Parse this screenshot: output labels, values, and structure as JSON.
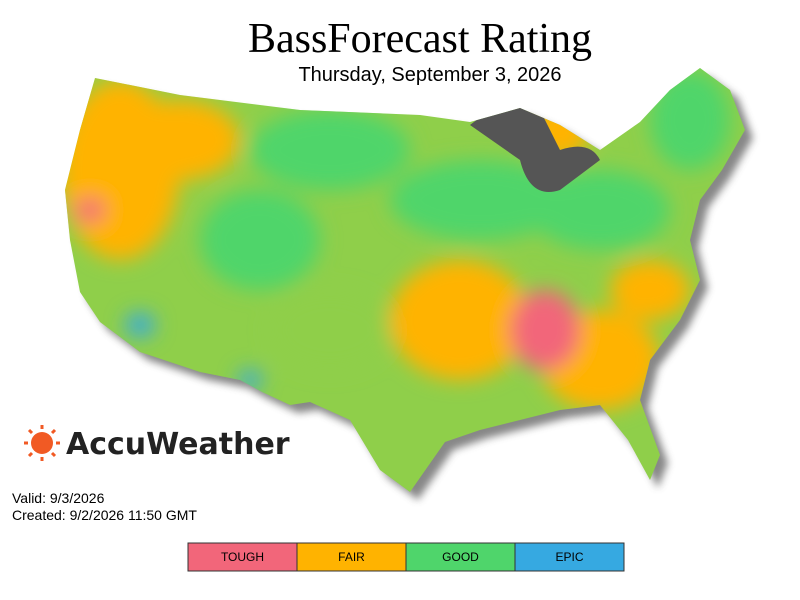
{
  "header": {
    "title": "BassForecast Rating",
    "subtitle": "Thursday, September 3, 2026"
  },
  "brand": "AccuWeather",
  "footer": {
    "valid": "Valid: 9/3/2026",
    "created": "Created: 9/2/2026 11:50 GMT"
  },
  "legend": [
    {
      "label": "TOUGH",
      "color": "#f2667a"
    },
    {
      "label": "FAIR",
      "color": "#ffb300"
    },
    {
      "label": "GOOD",
      "color": "#4fd56b"
    },
    {
      "label": "EPIC",
      "color": "#36a9e1"
    }
  ]
}
